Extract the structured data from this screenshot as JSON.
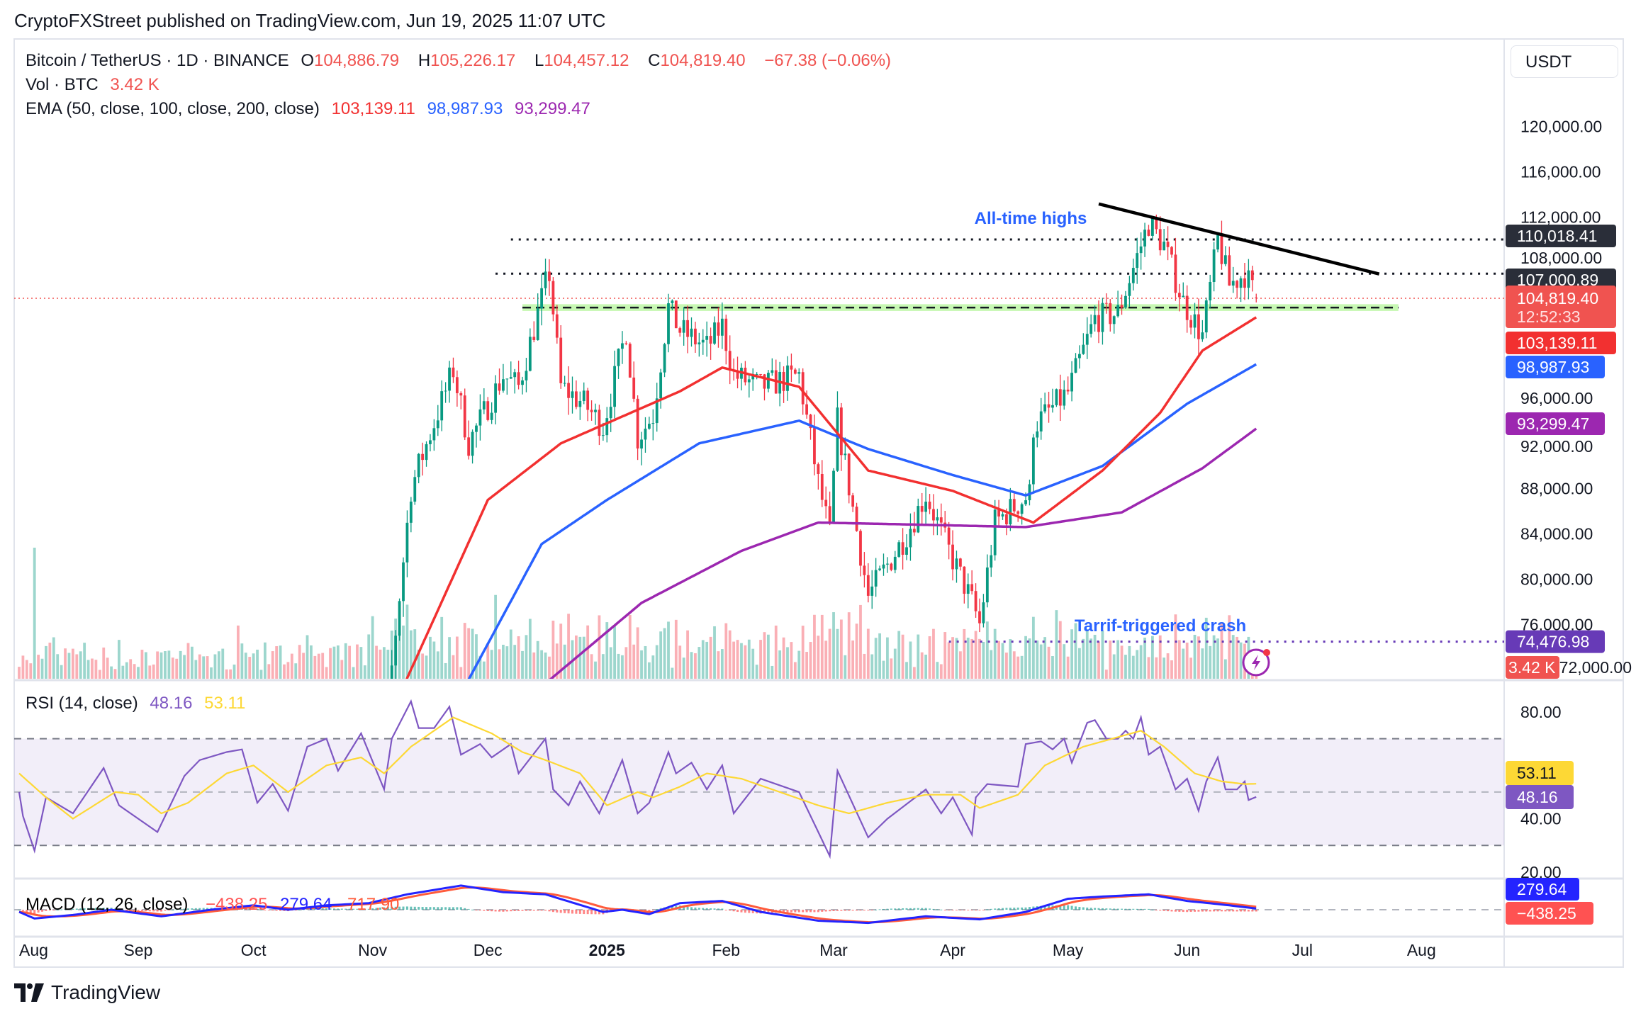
{
  "header": {
    "published": "CryptoFXStreet published on TradingView.com, Jun 19, 2025 11:07 UTC"
  },
  "legend": {
    "symbol": "Bitcoin / TetherUS · 1D · BINANCE",
    "o_label": "O",
    "o_value": "104,886.79",
    "h_label": "H",
    "h_value": "105,226.17",
    "l_label": "L",
    "l_value": "104,457.12",
    "c_label": "C",
    "c_value": "104,819.40",
    "change": "−67.38 (−0.06%)",
    "vol_label": "Vol · BTC",
    "vol_value": "3.42 K",
    "ema_label": "EMA (50, close, 100, close, 200, close)",
    "ema50": "103,139.11",
    "ema100": "98,987.93",
    "ema200": "93,299.47",
    "rsi_label": "RSI (14, close)",
    "rsi_value": "48.16",
    "rsi_ma_value": "53.11",
    "macd_label": "MACD (12, 26, close)",
    "macd_hist": "−438.25",
    "macd_value": "279.64",
    "macd_signal": "717.90"
  },
  "currency_button": "USDT",
  "price_axis": {
    "ticks": [
      "120,000.00",
      "116,000.00",
      "112,000.00",
      "108,000.00",
      "96,000.00",
      "92,000.00",
      "88,000.00",
      "84,000.00",
      "80,000.00",
      "76,000.00",
      "72,000.00"
    ],
    "badges": [
      {
        "label": "110,018.41",
        "value": 110018.41,
        "color": "#2a2e39"
      },
      {
        "label": "107,000.89",
        "value": 107000.89,
        "color": "#2a2e39"
      },
      {
        "label": "104,819.40",
        "sub": "12:52:33",
        "value": 104819.4,
        "color": "#f05350"
      },
      {
        "label": "103,139.11",
        "value": 103139.11,
        "color": "#f23030"
      },
      {
        "label": "98,987.93",
        "value": 98987.93,
        "color": "#2962ff"
      },
      {
        "label": "93,299.47",
        "value": 93299.47,
        "color": "#9c27b0"
      },
      {
        "label": "74,476.98",
        "value": 74476.98,
        "color": "#673ab7"
      },
      {
        "label": "3.42 K",
        "value": 72000,
        "color": "#f05350"
      }
    ]
  },
  "rsi_axis": {
    "ticks": [
      "80.00",
      "40.00",
      "20.00"
    ],
    "badges": [
      {
        "label": "53.11",
        "value": 53.11,
        "color": "#fdd835",
        "text": "#131722"
      },
      {
        "label": "48.16",
        "value": 48.16,
        "color": "#7e57c2",
        "text": "#ffffff"
      }
    ]
  },
  "macd_axis": {
    "badges": [
      {
        "label": "279.64",
        "value": 279.64,
        "color": "#2424ff"
      },
      {
        "label": "−438.25",
        "value": -438.25,
        "color": "#ff5252"
      }
    ]
  },
  "time_axis": [
    {
      "label": "Aug",
      "date": "2024-08-01"
    },
    {
      "label": "Sep",
      "date": "2024-09-01"
    },
    {
      "label": "Oct",
      "date": "2024-10-01"
    },
    {
      "label": "Nov",
      "date": "2024-11-01"
    },
    {
      "label": "Dec",
      "date": "2024-12-01"
    },
    {
      "label": "2025",
      "date": "2025-01-01",
      "bold": true
    },
    {
      "label": "Feb",
      "date": "2025-02-01"
    },
    {
      "label": "Mar",
      "date": "2025-03-01"
    },
    {
      "label": "Apr",
      "date": "2025-04-01"
    },
    {
      "label": "May",
      "date": "2025-05-01"
    },
    {
      "label": "Jun",
      "date": "2025-06-01"
    },
    {
      "label": "Jul",
      "date": "2025-07-01"
    },
    {
      "label": "Aug",
      "date": "2025-08-01"
    }
  ],
  "annotations": {
    "ath_label": "All-time highs",
    "crash_label": "Tarrif-triggered crash",
    "label_color": "#2962ff"
  },
  "brand": "TradingView",
  "chart_data": {
    "type": "candlestick",
    "symbol": "BTC/USDT",
    "last": {
      "date": "2025-06-19",
      "open": 104886.79,
      "high": 105226.17,
      "low": 104457.12,
      "close": 104819.4
    },
    "colors": {
      "up": "#089981",
      "down": "#f23645",
      "ema50": "#f23030",
      "ema100": "#2962ff",
      "ema200": "#9c27b0",
      "rsi": "#7e57c2",
      "rsi_ma": "#fdd835",
      "macd": "#2424ff",
      "signal": "#ff5b3b"
    },
    "price_ylim": [
      71000,
      125000
    ],
    "close_keypoints": [
      [
        "2024-10-28",
        69500
      ],
      [
        "2024-11-05",
        69000
      ],
      [
        "2024-11-11",
        88000
      ],
      [
        "2024-11-13",
        90000
      ],
      [
        "2024-11-22",
        98500
      ],
      [
        "2024-11-26",
        92000
      ],
      [
        "2024-12-05",
        98000
      ],
      [
        "2024-12-09",
        97000
      ],
      [
        "2024-12-16",
        106000
      ],
      [
        "2024-12-17",
        107000
      ],
      [
        "2024-12-20",
        97000
      ],
      [
        "2024-12-26",
        95500
      ],
      [
        "2024-12-31",
        93500
      ],
      [
        "2025-01-06",
        102000
      ],
      [
        "2025-01-09",
        92500
      ],
      [
        "2025-01-13",
        94500
      ],
      [
        "2025-01-17",
        104000
      ],
      [
        "2025-01-20",
        102000
      ],
      [
        "2025-01-27",
        100500
      ],
      [
        "2025-01-31",
        102400
      ],
      [
        "2025-02-03",
        98000
      ],
      [
        "2025-02-10",
        97000
      ],
      [
        "2025-02-20",
        98000
      ],
      [
        "2025-02-25",
        88500
      ],
      [
        "2025-02-28",
        84000
      ],
      [
        "2025-03-02",
        94000
      ],
      [
        "2025-03-10",
        78500
      ],
      [
        "2025-03-20",
        84000
      ],
      [
        "2025-03-25",
        87500
      ],
      [
        "2025-03-31",
        82500
      ],
      [
        "2025-04-06",
        78000
      ],
      [
        "2025-04-08",
        76000
      ],
      [
        "2025-04-12",
        85000
      ],
      [
        "2025-04-21",
        87500
      ],
      [
        "2025-04-22",
        93500
      ],
      [
        "2025-05-01",
        96500
      ],
      [
        "2025-05-08",
        103000
      ],
      [
        "2025-05-14",
        103500
      ],
      [
        "2025-05-22",
        111500
      ],
      [
        "2025-05-26",
        109500
      ],
      [
        "2025-05-31",
        104500
      ],
      [
        "2025-06-05",
        101500
      ],
      [
        "2025-06-09",
        110000
      ],
      [
        "2025-06-12",
        106000
      ],
      [
        "2025-06-16",
        107000
      ],
      [
        "2025-06-19",
        104819.4
      ]
    ],
    "ema50": [
      [
        "2024-11-09",
        70500
      ],
      [
        "2024-12-01",
        87000
      ],
      [
        "2024-12-20",
        92000
      ],
      [
        "2025-01-20",
        96600
      ],
      [
        "2025-01-31",
        98700
      ],
      [
        "2025-02-20",
        97000
      ],
      [
        "2025-03-10",
        89600
      ],
      [
        "2025-04-01",
        87800
      ],
      [
        "2025-04-22",
        85000
      ],
      [
        "2025-05-10",
        89600
      ],
      [
        "2025-05-25",
        94700
      ],
      [
        "2025-06-05",
        100200
      ],
      [
        "2025-06-19",
        103139.11
      ]
    ],
    "ema100": [
      [
        "2024-11-25",
        70500
      ],
      [
        "2024-12-15",
        83100
      ],
      [
        "2025-01-01",
        87000
      ],
      [
        "2025-01-25",
        92000
      ],
      [
        "2025-02-20",
        94000
      ],
      [
        "2025-03-10",
        91500
      ],
      [
        "2025-04-01",
        89200
      ],
      [
        "2025-04-20",
        87400
      ],
      [
        "2025-05-10",
        90000
      ],
      [
        "2025-06-01",
        95500
      ],
      [
        "2025-06-19",
        98987.93
      ]
    ],
    "ema200": [
      [
        "2024-12-15",
        70500
      ],
      [
        "2025-01-10",
        77900
      ],
      [
        "2025-02-05",
        82500
      ],
      [
        "2025-02-25",
        85000
      ],
      [
        "2025-03-25",
        84800
      ],
      [
        "2025-04-20",
        84600
      ],
      [
        "2025-05-15",
        85900
      ],
      [
        "2025-06-05",
        89800
      ],
      [
        "2025-06-19",
        93299.47
      ]
    ],
    "levels": [
      {
        "value": 110018.41,
        "from": "2024-12-07",
        "style": "dotted",
        "color": "#131722"
      },
      {
        "value": 107000.89,
        "from": "2024-12-03",
        "style": "dotted",
        "color": "#131722"
      },
      {
        "value": 74476.98,
        "from": "2025-03-31",
        "style": "dotted",
        "color": "#673ab7"
      }
    ],
    "support_zone": {
      "low": 103700,
      "high": 104300,
      "from": "2024-12-10",
      "to": "2025-07-26",
      "color": "#b9f6a0"
    },
    "trendline": {
      "from": [
        "2025-05-09",
        113160
      ],
      "to": [
        "2025-07-21",
        106970
      ],
      "color": "#000000"
    },
    "rsi": {
      "levels": [
        70,
        50,
        30
      ],
      "ylim": [
        15,
        90
      ],
      "values": [
        [
          "2024-08-01",
          50
        ],
        [
          "2024-08-02",
          41
        ],
        [
          "2024-08-05",
          28
        ],
        [
          "2024-08-08",
          48
        ],
        [
          "2024-08-15",
          42
        ],
        [
          "2024-08-23",
          59
        ],
        [
          "2024-08-27",
          45
        ],
        [
          "2024-09-06",
          35
        ],
        [
          "2024-09-13",
          56
        ],
        [
          "2024-09-17",
          62
        ],
        [
          "2024-09-24",
          65
        ],
        [
          "2024-09-28",
          66
        ],
        [
          "2024-10-02",
          46
        ],
        [
          "2024-10-06",
          53
        ],
        [
          "2024-10-10",
          43
        ],
        [
          "2024-10-15",
          67
        ],
        [
          "2024-10-20",
          70
        ],
        [
          "2024-10-23",
          58
        ],
        [
          "2024-10-29",
          72
        ],
        [
          "2024-11-04",
          51
        ],
        [
          "2024-11-06",
          70
        ],
        [
          "2024-11-11",
          84
        ],
        [
          "2024-11-13",
          74
        ],
        [
          "2024-11-17",
          74
        ],
        [
          "2024-11-21",
          82
        ],
        [
          "2024-11-24",
          64
        ],
        [
          "2024-11-29",
          68
        ],
        [
          "2024-12-02",
          63
        ],
        [
          "2024-12-07",
          68
        ],
        [
          "2024-12-09",
          57
        ],
        [
          "2024-12-16",
          70
        ],
        [
          "2024-12-18",
          51
        ],
        [
          "2024-12-22",
          45
        ],
        [
          "2024-12-25",
          54
        ],
        [
          "2024-12-30",
          42
        ],
        [
          "2025-01-05",
          62
        ],
        [
          "2025-01-09",
          42
        ],
        [
          "2025-01-12",
          46
        ],
        [
          "2025-01-17",
          65
        ],
        [
          "2025-01-19",
          57
        ],
        [
          "2025-01-23",
          61
        ],
        [
          "2025-01-27",
          51
        ],
        [
          "2025-01-31",
          60
        ],
        [
          "2025-02-03",
          42
        ],
        [
          "2025-02-10",
          55
        ],
        [
          "2025-02-20",
          50
        ],
        [
          "2025-02-25",
          35
        ],
        [
          "2025-02-28",
          26
        ],
        [
          "2025-03-02",
          58
        ],
        [
          "2025-03-10",
          33
        ],
        [
          "2025-03-15",
          40
        ],
        [
          "2025-03-25",
          51
        ],
        [
          "2025-03-29",
          42
        ],
        [
          "2025-04-01",
          48
        ],
        [
          "2025-04-06",
          34
        ],
        [
          "2025-04-07",
          48
        ],
        [
          "2025-04-10",
          53
        ],
        [
          "2025-04-18",
          52
        ],
        [
          "2025-04-20",
          68
        ],
        [
          "2025-04-24",
          69
        ],
        [
          "2025-04-27",
          66
        ],
        [
          "2025-04-30",
          70
        ],
        [
          "2025-05-02",
          61
        ],
        [
          "2025-05-06",
          76
        ],
        [
          "2025-05-08",
          77
        ],
        [
          "2025-05-11",
          70
        ],
        [
          "2025-05-14",
          70
        ],
        [
          "2025-05-16",
          73
        ],
        [
          "2025-05-18",
          70
        ],
        [
          "2025-05-20",
          78
        ],
        [
          "2025-05-22",
          64
        ],
        [
          "2025-05-25",
          67
        ],
        [
          "2025-05-29",
          51
        ],
        [
          "2025-06-01",
          55
        ],
        [
          "2025-06-04",
          43
        ],
        [
          "2025-06-06",
          54
        ],
        [
          "2025-06-09",
          63
        ],
        [
          "2025-06-11",
          51
        ],
        [
          "2025-06-14",
          51
        ],
        [
          "2025-06-16",
          54
        ],
        [
          "2025-06-17",
          47
        ],
        [
          "2025-06-19",
          48.16
        ]
      ],
      "ma": [
        [
          "2024-08-01",
          57
        ],
        [
          "2024-08-08",
          48
        ],
        [
          "2024-08-15",
          40
        ],
        [
          "2024-08-26",
          50
        ],
        [
          "2024-09-01",
          49
        ],
        [
          "2024-09-07",
          42
        ],
        [
          "2024-09-14",
          46
        ],
        [
          "2024-09-24",
          57
        ],
        [
          "2024-10-01",
          60
        ],
        [
          "2024-10-10",
          50
        ],
        [
          "2024-10-20",
          60
        ],
        [
          "2024-10-29",
          63
        ],
        [
          "2024-11-04",
          57
        ],
        [
          "2024-11-11",
          67
        ],
        [
          "2024-11-22",
          78
        ],
        [
          "2024-12-02",
          72
        ],
        [
          "2024-12-10",
          65
        ],
        [
          "2024-12-16",
          62
        ],
        [
          "2024-12-25",
          57
        ],
        [
          "2025-01-01",
          45
        ],
        [
          "2025-01-09",
          50
        ],
        [
          "2025-01-13",
          48
        ],
        [
          "2025-01-20",
          52
        ],
        [
          "2025-01-27",
          57
        ],
        [
          "2025-02-05",
          55
        ],
        [
          "2025-02-15",
          50
        ],
        [
          "2025-02-25",
          45
        ],
        [
          "2025-03-05",
          42
        ],
        [
          "2025-03-15",
          46
        ],
        [
          "2025-03-25",
          49
        ],
        [
          "2025-04-03",
          49
        ],
        [
          "2025-04-08",
          44
        ],
        [
          "2025-04-18",
          49
        ],
        [
          "2025-04-25",
          60
        ],
        [
          "2025-05-05",
          67
        ],
        [
          "2025-05-15",
          71
        ],
        [
          "2025-05-20",
          73
        ],
        [
          "2025-05-26",
          67
        ],
        [
          "2025-06-03",
          57
        ],
        [
          "2025-06-10",
          54
        ],
        [
          "2025-06-16",
          53
        ],
        [
          "2025-06-19",
          53.11
        ]
      ]
    },
    "macd": {
      "values": [
        [
          "2024-08-01",
          -500
        ],
        [
          "2024-08-05",
          -2000
        ],
        [
          "2024-08-15",
          -1200
        ],
        [
          "2024-08-25",
          0
        ],
        [
          "2024-09-07",
          -1500
        ],
        [
          "2024-09-20",
          0
        ],
        [
          "2024-10-01",
          1000
        ],
        [
          "2024-10-10",
          0
        ],
        [
          "2024-10-20",
          1000
        ],
        [
          "2024-10-31",
          1500
        ],
        [
          "2024-11-10",
          3500
        ],
        [
          "2024-11-24",
          5500
        ],
        [
          "2024-12-05",
          4000
        ],
        [
          "2024-12-16",
          3500
        ],
        [
          "2024-12-31",
          -500
        ],
        [
          "2025-01-05",
          0
        ],
        [
          "2025-01-12",
          -1000
        ],
        [
          "2025-01-20",
          1500
        ],
        [
          "2025-01-31",
          2000
        ],
        [
          "2025-02-10",
          -500
        ],
        [
          "2025-02-25",
          -2500
        ],
        [
          "2025-03-10",
          -3000
        ],
        [
          "2025-03-25",
          -1500
        ],
        [
          "2025-04-08",
          -2200
        ],
        [
          "2025-04-20",
          -500
        ],
        [
          "2025-05-01",
          2500
        ],
        [
          "2025-05-10",
          3000
        ],
        [
          "2025-05-22",
          3500
        ],
        [
          "2025-06-01",
          2000
        ],
        [
          "2025-06-10",
          1200
        ],
        [
          "2025-06-19",
          279.64
        ]
      ],
      "signal_last": 717.9,
      "hist_last": -438.25
    }
  }
}
